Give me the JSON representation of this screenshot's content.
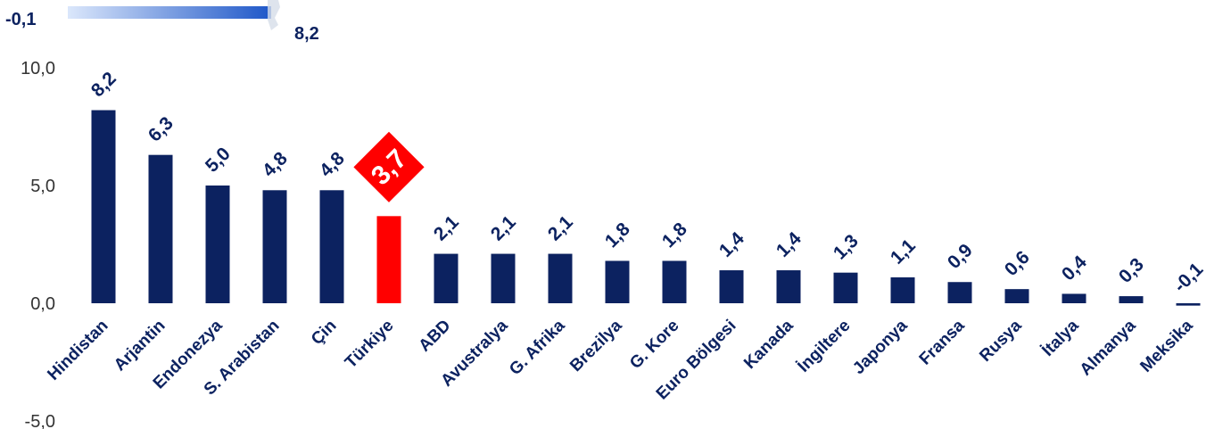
{
  "chart_data": {
    "type": "bar",
    "categories": [
      "Hindistan",
      "Arjantin",
      "Endonezya",
      "S. Arabistan",
      "Çin",
      "Türkiye",
      "ABD",
      "Avustralya",
      "G. Afrika",
      "Brezilya",
      "G. Kore",
      "Euro Bölgesi",
      "Kanada",
      "İngiltere",
      "Japonya",
      "Fransa",
      "Rusya",
      "İtalya",
      "Almanya",
      "Meksika"
    ],
    "values": [
      8.2,
      6.3,
      5.0,
      4.8,
      4.8,
      3.7,
      2.1,
      2.1,
      2.1,
      1.8,
      1.8,
      1.4,
      1.4,
      1.3,
      1.1,
      0.9,
      0.6,
      0.4,
      0.3,
      -0.1
    ],
    "value_labels": [
      "8,2",
      "6,3",
      "5,0",
      "4,8",
      "4,8",
      "3,7",
      "2,1",
      "2,1",
      "2,1",
      "1,8",
      "1,8",
      "1,4",
      "1,4",
      "1,3",
      "1,1",
      "0,9",
      "0,6",
      "0,4",
      "0,3",
      "-0,1"
    ],
    "highlight_category": "Türkiye",
    "ylim": [
      -5,
      10
    ],
    "y_ticks": [
      10,
      5,
      0,
      -5
    ],
    "y_tick_labels": [
      "10,0",
      "5,0",
      "0,0",
      "-5,0"
    ],
    "grid": false,
    "legend": {
      "min_label": "-0,1",
      "max_label": "8,2",
      "placement": "top-left"
    },
    "colors": {
      "bar": "#0c2260",
      "highlight": "#ff0000",
      "text": "#0c2260",
      "axis_text": "#333333",
      "gradient_start": "#dbe7fb",
      "gradient_end": "#1e57c8"
    }
  }
}
